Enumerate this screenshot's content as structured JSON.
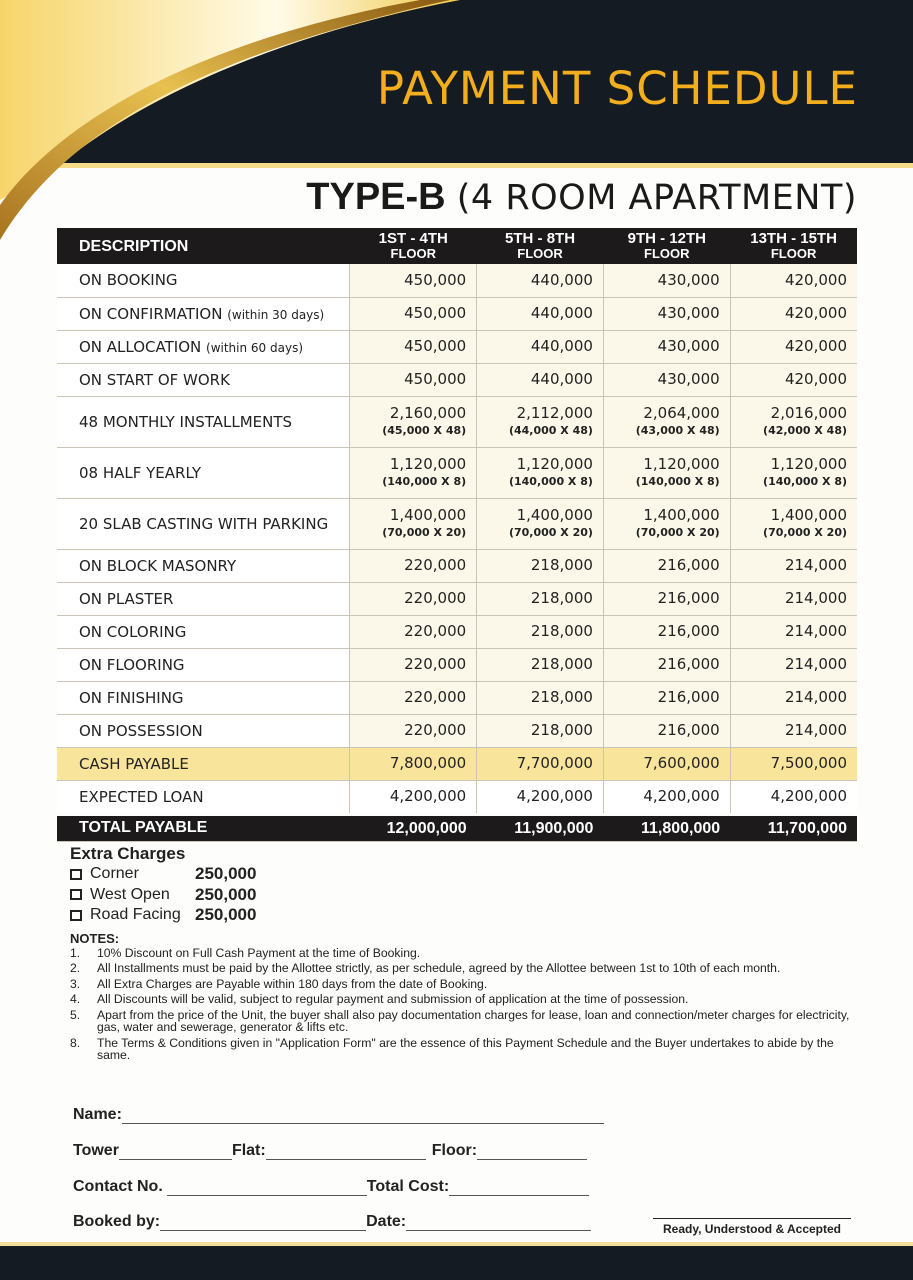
{
  "header": {
    "title": "PAYMENT SCHEDULE",
    "type": "TYPE-B",
    "type_desc": "(4 ROOM APARTMENT)"
  },
  "colors": {
    "dark": "#151b23",
    "gold": "#f2ae1c",
    "cash_row": "#f9e49b",
    "cell": "#fcf8e9"
  },
  "table": {
    "columns": [
      {
        "label": "DESCRIPTION"
      },
      {
        "label": "1ST - 4TH",
        "sub": "FLOOR"
      },
      {
        "label": "5TH - 8TH",
        "sub": "FLOOR"
      },
      {
        "label": "9TH - 12TH",
        "sub": "FLOOR"
      },
      {
        "label": "13TH - 15TH",
        "sub": "FLOOR"
      }
    ],
    "rows": [
      {
        "desc": "ON BOOKING",
        "values": [
          "450,000",
          "440,000",
          "430,000",
          "420,000"
        ]
      },
      {
        "desc": "ON CONFIRMATION",
        "note": "(within 30 days)",
        "values": [
          "450,000",
          "440,000",
          "430,000",
          "420,000"
        ]
      },
      {
        "desc": "ON ALLOCATION",
        "note": "(within 60 days)",
        "values": [
          "450,000",
          "440,000",
          "430,000",
          "420,000"
        ]
      },
      {
        "desc": "ON START OF WORK",
        "values": [
          "450,000",
          "440,000",
          "430,000",
          "420,000"
        ]
      },
      {
        "desc": "48 MONTHLY INSTALLMENTS",
        "values": [
          "2,160,000",
          "2,112,000",
          "2,064,000",
          "2,016,000"
        ],
        "subs": [
          "(45,000 X 48)",
          "(44,000 X 48)",
          "(43,000 X 48)",
          "(42,000 X 48)"
        ]
      },
      {
        "desc": "08 HALF YEARLY",
        "values": [
          "1,120,000",
          "1,120,000",
          "1,120,000",
          "1,120,000"
        ],
        "subs": [
          "(140,000 X 8)",
          "(140,000 X 8)",
          "(140,000 X 8)",
          "(140,000 X 8)"
        ]
      },
      {
        "desc": "20 SLAB CASTING WITH PARKING",
        "values": [
          "1,400,000",
          "1,400,000",
          "1,400,000",
          "1,400,000"
        ],
        "subs": [
          "(70,000 X 20)",
          "(70,000 X 20)",
          "(70,000 X 20)",
          "(70,000 X 20)"
        ]
      },
      {
        "desc": "ON BLOCK MASONRY",
        "values": [
          "220,000",
          "218,000",
          "216,000",
          "214,000"
        ]
      },
      {
        "desc": "ON PLASTER",
        "values": [
          "220,000",
          "218,000",
          "216,000",
          "214,000"
        ]
      },
      {
        "desc": "ON COLORING",
        "values": [
          "220,000",
          "218,000",
          "216,000",
          "214,000"
        ]
      },
      {
        "desc": "ON FLOORING",
        "values": [
          "220,000",
          "218,000",
          "216,000",
          "214,000"
        ]
      },
      {
        "desc": "ON FINISHING",
        "values": [
          "220,000",
          "218,000",
          "216,000",
          "214,000"
        ]
      },
      {
        "desc": "ON POSSESSION",
        "values": [
          "220,000",
          "218,000",
          "216,000",
          "214,000"
        ]
      },
      {
        "desc": "CASH PAYABLE",
        "kind": "cash",
        "values": [
          "7,800,000",
          "7,700,000",
          "7,600,000",
          "7,500,000"
        ]
      },
      {
        "desc": "EXPECTED LOAN",
        "kind": "loan",
        "values": [
          "4,200,000",
          "4,200,000",
          "4,200,000",
          "4,200,000"
        ]
      },
      {
        "desc": "TOTAL PAYABLE",
        "kind": "total",
        "values": [
          "12,000,000",
          "11,900,000",
          "11,800,000",
          "11,700,000"
        ]
      }
    ]
  },
  "extra": {
    "title": "Extra Charges",
    "items": [
      {
        "label": "Corner",
        "amount": "250,000"
      },
      {
        "label": "West Open",
        "amount": "250,000"
      },
      {
        "label": "Road Facing",
        "amount": "250,000"
      }
    ]
  },
  "notes": {
    "title": "NOTES:",
    "items": [
      {
        "n": "1.",
        "text": "10% Discount on Full Cash Payment at the time of Booking."
      },
      {
        "n": "2.",
        "text": "All Installments must be paid by the Allottee strictly, as per schedule, agreed by the Allottee between 1st to 10th of each month."
      },
      {
        "n": "3.",
        "text": "All Extra Charges are Payable within 180 days from the date of Booking."
      },
      {
        "n": "4.",
        "text": "All Discounts will be valid, subject to regular payment and submission of application at the time of possession."
      },
      {
        "n": "5.",
        "text": "Apart from the price of the Unit, the buyer shall also pay documentation charges for lease, loan and connection/meter charges for electricity, gas, water and sewerage, generator & lifts etc."
      },
      {
        "n": "8.",
        "text": "The Terms & Conditions given in \"Application Form\" are the essence of this Payment Schedule and the Buyer undertakes to abide by the same."
      }
    ]
  },
  "form": {
    "name": "Name:",
    "tower": "Tower",
    "flat": "Flat:",
    "floor": "Floor:",
    "contact": "Contact No.",
    "total_cost": "Total Cost:",
    "booked_by": "Booked by:",
    "date": "Date:",
    "signature": "Ready, Understood & Accepted"
  }
}
